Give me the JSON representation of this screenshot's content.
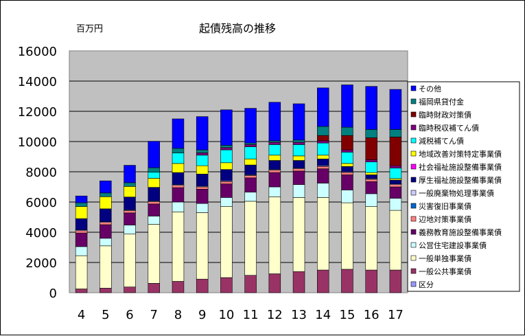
{
  "chart_data": {
    "type": "bar",
    "stacked": true,
    "title": "起債残高の推移",
    "unit_label": "百万円",
    "categories": [
      "4",
      "5",
      "6",
      "7",
      "8",
      "9",
      "10",
      "11",
      "12",
      "13",
      "14",
      "15",
      "16",
      "17"
    ],
    "ylim": [
      0,
      16000
    ],
    "yticks": [
      0,
      2000,
      4000,
      6000,
      8000,
      10000,
      12000,
      14000,
      16000
    ],
    "grid": true,
    "legend_position": "right",
    "series": [
      {
        "name": "区分",
        "color": "#9999FF",
        "values": [
          0,
          0,
          0,
          0,
          0,
          0,
          0,
          0,
          0,
          0,
          0,
          0,
          0,
          0
        ]
      },
      {
        "name": "一般公共事業債",
        "color": "#993366",
        "values": [
          250,
          300,
          380,
          620,
          750,
          900,
          1000,
          1150,
          1250,
          1400,
          1500,
          1550,
          1500,
          1500
        ]
      },
      {
        "name": "一般単独事業債",
        "color": "#FFFFCC",
        "values": [
          2200,
          2800,
          3500,
          3900,
          4600,
          4400,
          4700,
          4900,
          5100,
          4900,
          4800,
          4400,
          4200,
          3950
        ]
      },
      {
        "name": "公営住宅建設事業債",
        "color": "#CCFFFF",
        "values": [
          600,
          500,
          600,
          550,
          650,
          600,
          600,
          600,
          650,
          850,
          950,
          850,
          850,
          800
        ]
      },
      {
        "name": "義務教育施設整備事業債",
        "color": "#660066",
        "values": [
          900,
          900,
          800,
          800,
          950,
          950,
          900,
          950,
          950,
          900,
          950,
          1000,
          800,
          750
        ]
      },
      {
        "name": "辺地対策事業債",
        "color": "#FF8080",
        "values": [
          150,
          150,
          150,
          150,
          150,
          150,
          150,
          150,
          150,
          150,
          150,
          150,
          150,
          150
        ]
      },
      {
        "name": "災害復旧事業債",
        "color": "#0066CC",
        "values": [
          0,
          0,
          0,
          0,
          0,
          0,
          0,
          0,
          0,
          0,
          0,
          0,
          0,
          0
        ]
      },
      {
        "name": "一般廃棄物処理事業債",
        "color": "#CCCCFF",
        "values": [
          50,
          50,
          50,
          50,
          50,
          50,
          50,
          50,
          50,
          50,
          50,
          50,
          50,
          50
        ]
      },
      {
        "name": "厚生福祉施設整備事業債",
        "color": "#000080",
        "values": [
          750,
          850,
          850,
          900,
          800,
          800,
          750,
          650,
          600,
          500,
          450,
          350,
          250,
          250
        ]
      },
      {
        "name": "社会福祉施設整備事業債",
        "color": "#FF00FF",
        "values": [
          0,
          0,
          0,
          0,
          0,
          0,
          0,
          0,
          0,
          0,
          0,
          0,
          0,
          0
        ]
      },
      {
        "name": "地域改善対策特定事業債",
        "color": "#FFFF00",
        "values": [
          800,
          800,
          700,
          600,
          600,
          550,
          450,
          400,
          350,
          300,
          250,
          200,
          150,
          100
        ]
      },
      {
        "name": "減税補てん債",
        "color": "#00FFFF",
        "values": [
          0,
          0,
          0,
          400,
          700,
          700,
          850,
          800,
          700,
          750,
          800,
          750,
          700,
          700
        ]
      },
      {
        "name": "臨時税収補てん債",
        "color": "#800080",
        "values": [
          0,
          0,
          0,
          0,
          0,
          150,
          150,
          150,
          150,
          150,
          150,
          150,
          150,
          150
        ]
      },
      {
        "name": "臨時財政対策債",
        "color": "#800000",
        "values": [
          0,
          0,
          0,
          0,
          0,
          0,
          0,
          0,
          0,
          0,
          350,
          950,
          1450,
          1900
        ]
      },
      {
        "name": "福岡県貸付金",
        "color": "#008080",
        "values": [
          250,
          250,
          250,
          300,
          300,
          200,
          150,
          100,
          100,
          150,
          600,
          550,
          550,
          500
        ]
      },
      {
        "name": "その他",
        "color": "#0000FF",
        "values": [
          450,
          800,
          1150,
          1750,
          1950,
          2200,
          2350,
          2300,
          2550,
          2400,
          2550,
          2800,
          2850,
          2650
        ]
      }
    ]
  }
}
